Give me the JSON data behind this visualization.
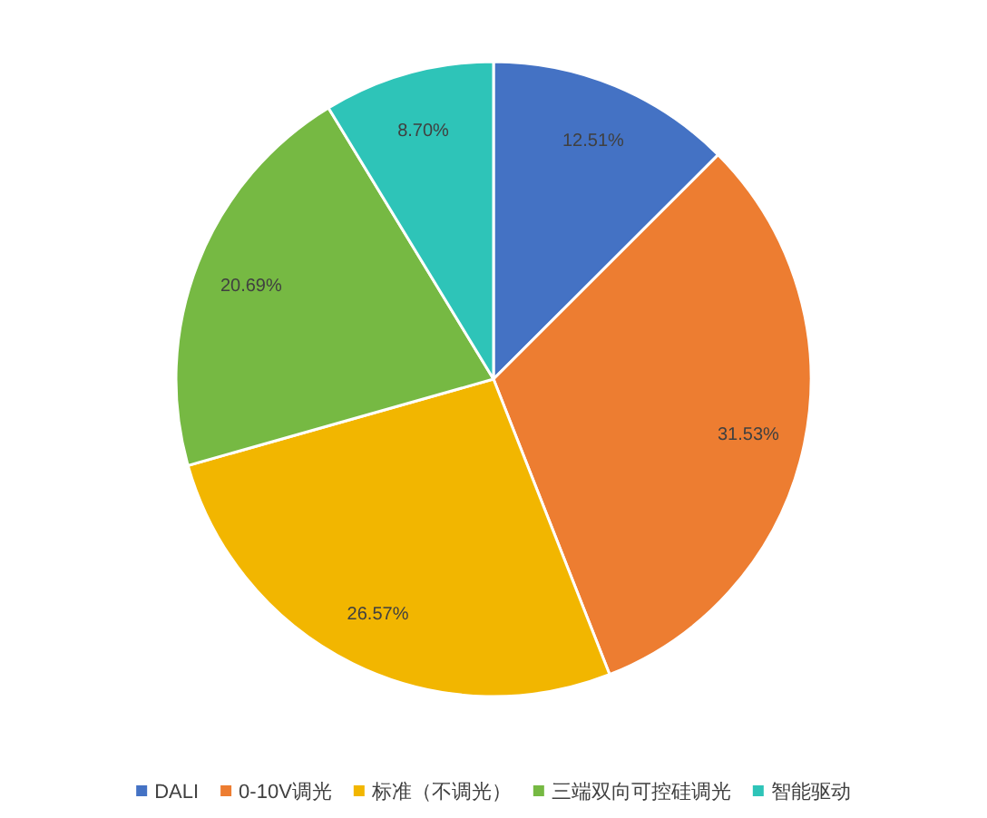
{
  "chart_data": {
    "type": "pie",
    "categories": [
      "DALI",
      "0-10V调光",
      "标准（不调光）",
      "三端双向可控硅调光",
      "智能驱动"
    ],
    "values": [
      12.51,
      31.53,
      26.57,
      20.69,
      8.7
    ],
    "colors": [
      "#4472c4",
      "#ed7d31",
      "#f2b600",
      "#76b943",
      "#2ec4b8"
    ],
    "value_labels": [
      "12.51%",
      "31.53%",
      "26.57%",
      "20.69%",
      "8.70%"
    ],
    "legend": "bottom"
  }
}
